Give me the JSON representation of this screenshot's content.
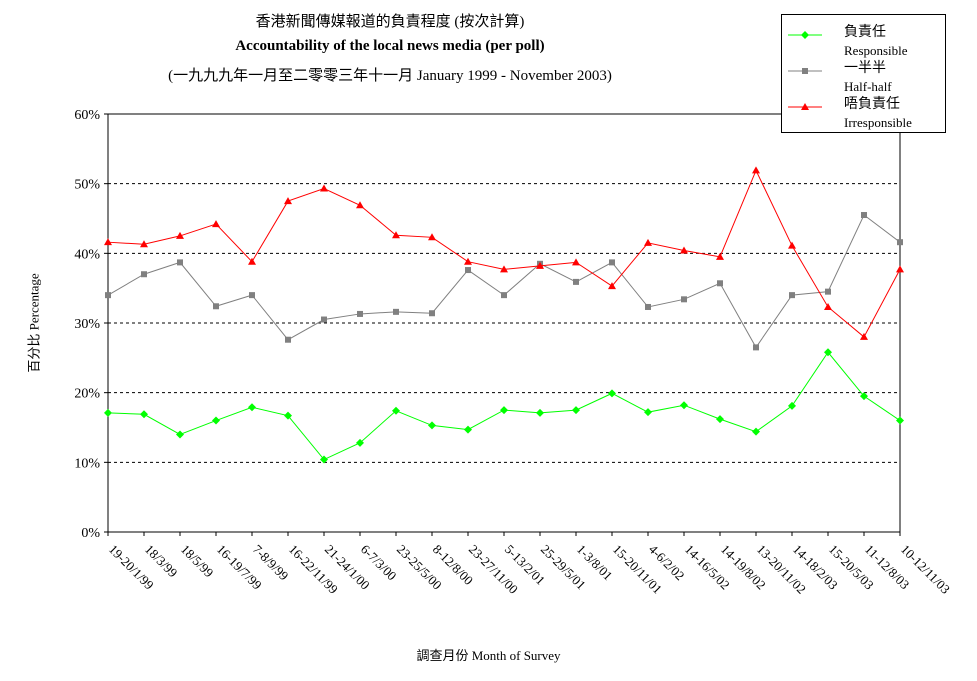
{
  "chart_data": {
    "type": "line",
    "title": "香港新聞傳媒報道的負責程度 (按次計算)",
    "subtitle": "Accountability of the local news media (per poll)",
    "subtitle2": "(一九九九年一月至二零零三年十一月 January 1999 - November 2003)",
    "xlabel": "調查月份 Month of Survey",
    "ylabel": "百分比 Percentage",
    "ylim": [
      0,
      60
    ],
    "yticks": [
      "0%",
      "10%",
      "20%",
      "30%",
      "40%",
      "50%",
      "60%"
    ],
    "grid": "horizontal dashed",
    "legend_position": "top-right",
    "categories": [
      "19-20/1/99",
      "18/3/99",
      "18/5/99",
      "16-19/7/99",
      "7-8/9/99",
      "16-22/11/99",
      "21-24/1/00",
      "6-7/3/00",
      "23-25/5/00",
      "8-12/8/00",
      "23-27/11/00",
      "5-13/2/01",
      "25-29/5/01",
      "1-3/8/01",
      "15-20/11/01",
      "4-6/2/02",
      "14-16/5/02",
      "14-19/8/02",
      "13-20/11/02",
      "14-18/2/03",
      "15-20/5/03",
      "11-12/8/03",
      "10-12/11/03"
    ],
    "series": [
      {
        "name_cn": "負責任",
        "name_en": "Responsible",
        "color": "#00ff00",
        "marker": "diamond",
        "values": [
          17.1,
          16.9,
          14.0,
          16.0,
          17.9,
          16.7,
          10.4,
          12.8,
          17.4,
          15.3,
          14.7,
          17.5,
          17.1,
          17.5,
          19.9,
          17.2,
          18.2,
          16.2,
          14.4,
          18.1,
          25.8,
          19.5,
          16.0
        ]
      },
      {
        "name_cn": "一半半",
        "name_en": "Half-half",
        "color": "#808080",
        "marker": "square",
        "values": [
          34.0,
          37.0,
          38.7,
          32.4,
          34.0,
          27.6,
          30.5,
          31.3,
          31.6,
          31.4,
          37.6,
          34.0,
          38.5,
          35.9,
          38.7,
          32.3,
          33.4,
          35.7,
          26.5,
          34.0,
          34.5,
          45.5,
          41.6
        ]
      },
      {
        "name_cn": "唔負責任",
        "name_en": "Irresponsible",
        "color": "#ff0000",
        "marker": "triangle",
        "values": [
          41.6,
          41.3,
          42.5,
          44.2,
          38.8,
          47.5,
          49.3,
          46.9,
          42.6,
          42.3,
          38.8,
          37.7,
          38.2,
          38.7,
          35.3,
          41.5,
          40.4,
          39.5,
          51.9,
          41.1,
          32.3,
          28.0,
          37.7
        ]
      }
    ]
  }
}
